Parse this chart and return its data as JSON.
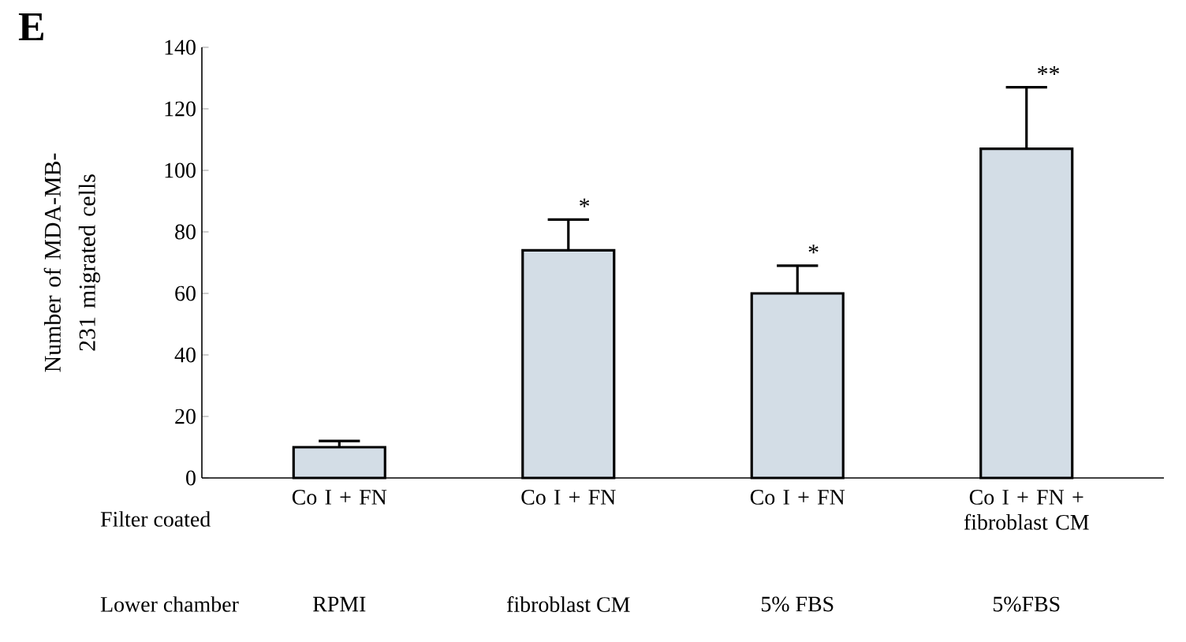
{
  "chart_data": {
    "type": "bar",
    "ylabel": "Number of MDA-MB-231 migrated cells",
    "categories": [
      "Co I + FN",
      "Co I + FN",
      "Co I + FN",
      "Co I + FN + fibroblast CM"
    ],
    "values": [
      10,
      74,
      60,
      107
    ],
    "errors": [
      [
        10,
        12
      ],
      [
        74,
        84
      ],
      [
        60,
        69
      ],
      [
        107,
        127
      ]
    ],
    "color": "#d3dde6",
    "ylim": [
      0,
      140
    ],
    "yticks": [
      0,
      20,
      40,
      60,
      80,
      100,
      120,
      140
    ],
    "annotations": [
      "E",
      "Filter coated",
      "Lower chamber",
      "RPMI",
      "fibroblast CM",
      "5% FBS",
      "5%FBS",
      "*",
      "*",
      "**"
    ]
  }
}
